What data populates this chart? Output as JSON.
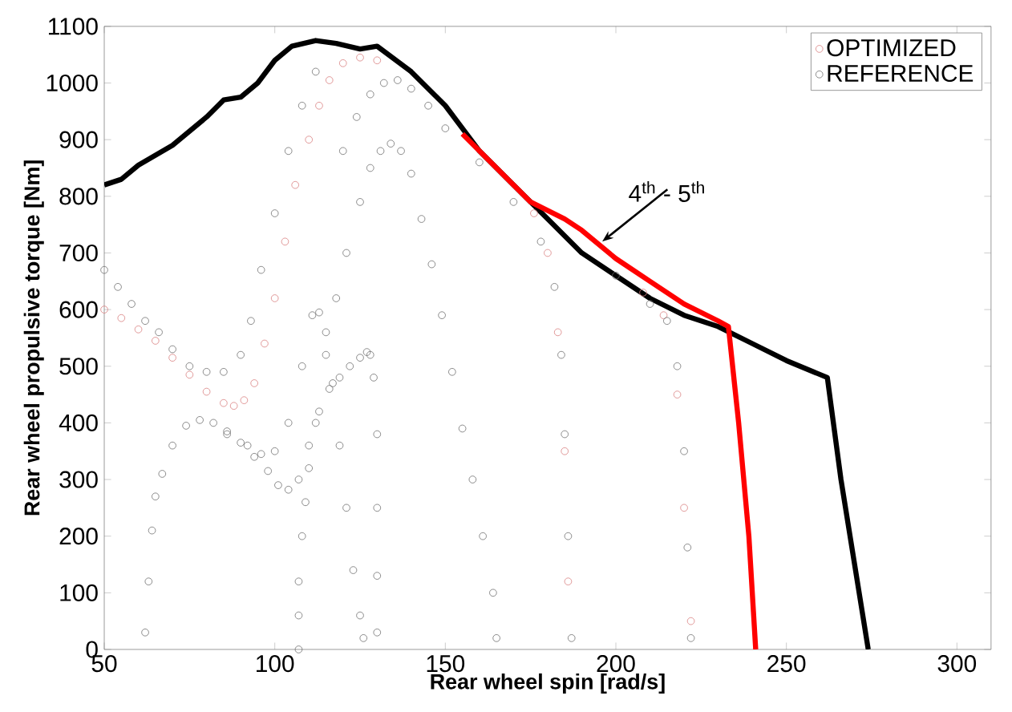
{
  "chart_data": {
    "type": "scatter",
    "xlabel": "Rear wheel spin [rad/s]",
    "ylabel": "Rear wheel propulsive torque [Nm]",
    "xlim": [
      50,
      310
    ],
    "ylim": [
      0,
      1100
    ],
    "xticks": [
      50,
      100,
      150,
      200,
      250,
      300
    ],
    "yticks": [
      0,
      100,
      200,
      300,
      400,
      500,
      600,
      700,
      800,
      900,
      1000,
      1100
    ],
    "legend": "top right",
    "grid": false,
    "annotations": [
      {
        "text": "4$^{th}$ - 5$^{th}$",
        "x": 196,
        "y": 720
      }
    ],
    "series": [
      {
        "name": "OPTIMIZED",
        "marker": "circle",
        "color": "#d98080",
        "x": [
          50,
          55,
          60,
          65,
          70,
          75,
          80,
          85,
          88,
          91,
          94,
          97,
          100,
          103,
          106,
          110,
          113,
          116,
          120,
          125,
          130,
          176,
          180,
          183,
          185,
          186,
          208,
          214,
          218,
          220,
          222
        ],
        "values": [
          600,
          585,
          565,
          545,
          515,
          485,
          455,
          435,
          430,
          440,
          470,
          540,
          620,
          720,
          820,
          900,
          960,
          1005,
          1035,
          1045,
          1040,
          770,
          700,
          560,
          350,
          120,
          630,
          590,
          450,
          250,
          50
        ]
      },
      {
        "name": "REFERENCE",
        "marker": "circle",
        "color": "#707070",
        "x": [
          50,
          54,
          58,
          62,
          66,
          70,
          75,
          80,
          85,
          90,
          93,
          96,
          100,
          104,
          108,
          112,
          62,
          63,
          64,
          65,
          67,
          70,
          74,
          78,
          82,
          86,
          90,
          94,
          98,
          101,
          104,
          107,
          110,
          113,
          116,
          119,
          122,
          125,
          127,
          128,
          129,
          130,
          130,
          130,
          130,
          86,
          92,
          96,
          100,
          104,
          108,
          111,
          113,
          115,
          117,
          119,
          121,
          123,
          125,
          126,
          107,
          107,
          107,
          108,
          109,
          110,
          112,
          115,
          118,
          121,
          125,
          128,
          131,
          134,
          137,
          140,
          143,
          146,
          149,
          152,
          155,
          158,
          161,
          164,
          165,
          120,
          124,
          128,
          132,
          136,
          140,
          145,
          150,
          160,
          170,
          178,
          182,
          184,
          185,
          186,
          187,
          200,
          210,
          215,
          218,
          220,
          221,
          222
        ],
        "values": [
          670,
          640,
          610,
          580,
          560,
          530,
          500,
          490,
          490,
          520,
          580,
          670,
          770,
          880,
          960,
          1020,
          30,
          120,
          210,
          270,
          310,
          360,
          395,
          405,
          400,
          385,
          365,
          340,
          315,
          290,
          282,
          300,
          360,
          420,
          460,
          480,
          500,
          515,
          525,
          520,
          480,
          380,
          250,
          130,
          30,
          380,
          360,
          345,
          350,
          400,
          500,
          590,
          595,
          560,
          470,
          360,
          250,
          140,
          60,
          20,
          0,
          60,
          120,
          200,
          260,
          320,
          400,
          520,
          620,
          700,
          790,
          850,
          880,
          893,
          880,
          840,
          760,
          680,
          590,
          490,
          390,
          300,
          200,
          100,
          20,
          880,
          940,
          980,
          1000,
          1005,
          990,
          960,
          920,
          860,
          790,
          720,
          640,
          520,
          380,
          200,
          20,
          660,
          610,
          580,
          500,
          350,
          180,
          20
        ]
      },
      {
        "type": "line",
        "marker": "none",
        "color": "#000000",
        "x": [
          50,
          55,
          60,
          70,
          80,
          85,
          90,
          95,
          100,
          105,
          112,
          118,
          125,
          130,
          140,
          150,
          160,
          170,
          180,
          190,
          200,
          210,
          220,
          230,
          240,
          250,
          262,
          266,
          270,
          274
        ],
        "values": [
          820,
          830,
          855,
          890,
          940,
          970,
          975,
          1000,
          1040,
          1065,
          1075,
          1070,
          1060,
          1065,
          1020,
          960,
          880,
          820,
          760,
          700,
          660,
          620,
          590,
          570,
          540,
          510,
          480,
          300,
          150,
          0
        ]
      },
      {
        "type": "line",
        "marker": "none",
        "color": "#ff0000",
        "x": [
          155,
          165,
          175,
          185,
          190,
          200,
          210,
          220,
          230,
          233,
          236,
          239,
          241
        ],
        "values": [
          910,
          850,
          790,
          760,
          740,
          690,
          650,
          610,
          580,
          570,
          400,
          200,
          0
        ]
      }
    ]
  }
}
